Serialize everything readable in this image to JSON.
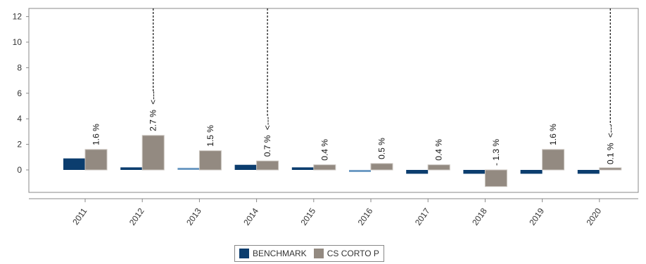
{
  "chart_data": {
    "type": "bar",
    "title": "",
    "xlabel": "",
    "ylabel": "",
    "ylim": [
      -1.5,
      12.5
    ],
    "yticks": [
      0,
      2,
      4,
      6,
      8,
      10,
      12
    ],
    "categories": [
      "2011",
      "2012",
      "2013",
      "2014",
      "2015",
      "2016",
      "2017",
      "2018",
      "2019",
      "2020"
    ],
    "series": [
      {
        "name": "BENCHMARK",
        "color": "#0b3d6e",
        "values": [
          0.9,
          0.2,
          0.1,
          0.4,
          0.2,
          -0.1,
          -0.3,
          -0.3,
          -0.3,
          -0.3
        ]
      },
      {
        "name": "CS CORTO P",
        "color": "#938a81",
        "values": [
          1.6,
          2.7,
          1.5,
          0.7,
          0.4,
          0.5,
          0.4,
          -1.3,
          1.6,
          0.1
        ],
        "labels": [
          "1.6 %",
          "2.7 %",
          "1.5 %",
          "0.7 %",
          "0.4 %",
          "0.5 %",
          "0.4 %",
          "- 1.3 %",
          "1.6 %",
          "0.1 %"
        ]
      }
    ],
    "annotations": [
      {
        "category": "2012",
        "text": "<---"
      },
      {
        "category": "2014",
        "text": "<---"
      },
      {
        "category": "2020",
        "text": "<---"
      }
    ],
    "legend": {
      "position": "bottom-center"
    },
    "grid": false
  },
  "legend_labels": {
    "benchmark": "BENCHMARK",
    "cs_corto_p": "CS CORTO P"
  }
}
